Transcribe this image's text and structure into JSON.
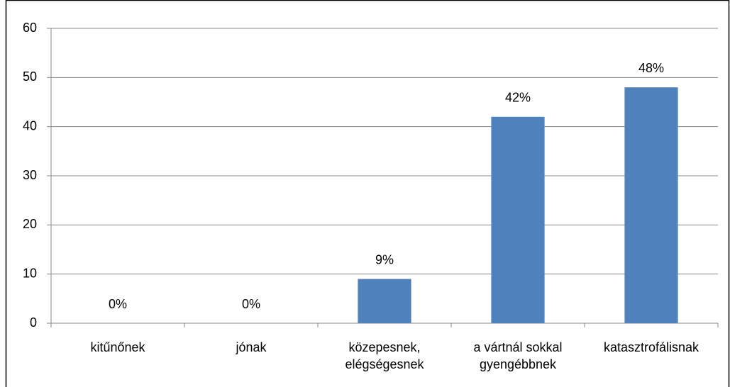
{
  "chart_data": {
    "type": "bar",
    "categories": [
      "kitűnőnek",
      "jónak",
      "közepesnek, elégségesnek",
      "a vártnál sokkal gyengébbnek",
      "katasztrofálisnak"
    ],
    "values": [
      0,
      0,
      9,
      42,
      48
    ],
    "value_labels": [
      "0%",
      "0%",
      "9%",
      "42%",
      "48%"
    ],
    "color": "#4f81bd",
    "ylim": [
      0,
      60
    ],
    "yticks": [
      0,
      10,
      20,
      30,
      40,
      50,
      60
    ],
    "grid": true
  }
}
